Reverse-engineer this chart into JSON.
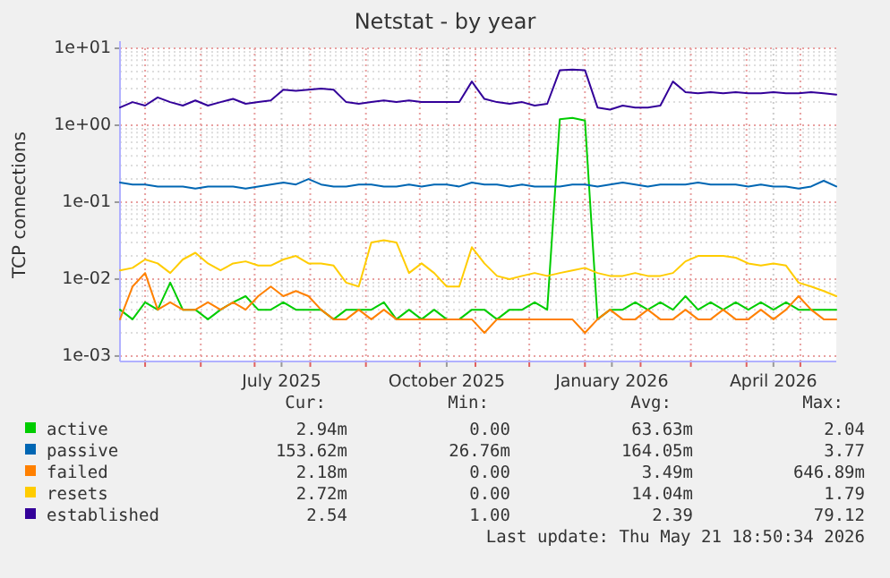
{
  "chart_data": {
    "type": "line",
    "title": "Netstat - by year",
    "ylabel": "TCP connections",
    "log": "y",
    "grid": true,
    "legend": "bottom",
    "line_style": "solid",
    "xlim": [
      "2025-04-17",
      "2026-05-21"
    ],
    "xticks": [
      {
        "value": "2025-05-01",
        "label": null
      },
      {
        "value": "2025-06-01",
        "label": null
      },
      {
        "value": "2025-07-01",
        "label": null
      },
      {
        "value": "2025-07-16",
        "label": "July 2025"
      },
      {
        "value": "2025-08-01",
        "label": null
      },
      {
        "value": "2025-09-01",
        "label": null
      },
      {
        "value": "2025-10-01",
        "label": null
      },
      {
        "value": "2025-10-16",
        "label": "October 2025"
      },
      {
        "value": "2025-11-01",
        "label": null
      },
      {
        "value": "2025-12-01",
        "label": null
      },
      {
        "value": "2026-01-01",
        "label": null
      },
      {
        "value": "2026-01-16",
        "label": "January 2026"
      },
      {
        "value": "2026-02-01",
        "label": null
      },
      {
        "value": "2026-03-01",
        "label": null
      },
      {
        "value": "2026-04-01",
        "label": null
      },
      {
        "value": "2026-04-16",
        "label": "April 2026"
      },
      {
        "value": "2026-05-01",
        "label": null
      }
    ],
    "ylim": [
      0.00085,
      10
    ],
    "yticks": [
      {
        "value": 0.001,
        "label": "1e-03"
      },
      {
        "value": 0.01,
        "label": "1e-02"
      },
      {
        "value": 0.1,
        "label": "1e-01"
      },
      {
        "value": 1,
        "label": "1e+00"
      },
      {
        "value": 10,
        "label": "1e+01"
      }
    ],
    "x": [
      "2025-04-17",
      "2025-04-24",
      "2025-05-01",
      "2025-05-08",
      "2025-05-15",
      "2025-05-22",
      "2025-05-29",
      "2025-06-05",
      "2025-06-12",
      "2025-06-19",
      "2025-06-26",
      "2025-07-03",
      "2025-07-10",
      "2025-07-17",
      "2025-07-24",
      "2025-07-31",
      "2025-08-07",
      "2025-08-14",
      "2025-08-21",
      "2025-08-28",
      "2025-09-04",
      "2025-09-11",
      "2025-09-18",
      "2025-09-25",
      "2025-10-02",
      "2025-10-09",
      "2025-10-16",
      "2025-10-23",
      "2025-10-30",
      "2025-11-06",
      "2025-11-13",
      "2025-11-20",
      "2025-11-27",
      "2025-12-04",
      "2025-12-11",
      "2025-12-18",
      "2025-12-25",
      "2026-01-01",
      "2026-01-08",
      "2026-01-15",
      "2026-01-22",
      "2026-01-29",
      "2026-02-05",
      "2026-02-12",
      "2026-02-19",
      "2026-02-26",
      "2026-03-05",
      "2026-03-12",
      "2026-03-19",
      "2026-03-26",
      "2026-04-02",
      "2026-04-09",
      "2026-04-16",
      "2026-04-23",
      "2026-04-30",
      "2026-05-07",
      "2026-05-14",
      "2026-05-21"
    ],
    "series": [
      {
        "name": "active",
        "color": "#00cc00",
        "values": [
          0.004,
          0.003,
          0.005,
          0.004,
          0.009,
          0.004,
          0.004,
          0.003,
          0.004,
          0.005,
          0.006,
          0.004,
          0.004,
          0.005,
          0.004,
          0.004,
          0.004,
          0.003,
          0.004,
          0.004,
          0.004,
          0.005,
          0.003,
          0.004,
          0.003,
          0.004,
          0.003,
          0.003,
          0.004,
          0.004,
          0.003,
          0.004,
          0.004,
          0.005,
          0.004,
          1.2,
          1.25,
          1.15,
          0.003,
          0.004,
          0.004,
          0.005,
          0.004,
          0.005,
          0.004,
          0.006,
          0.004,
          0.005,
          0.004,
          0.005,
          0.004,
          0.005,
          0.004,
          0.005,
          0.004,
          0.004,
          0.004,
          0.004
        ]
      },
      {
        "name": "passive",
        "color": "#0066b3",
        "values": [
          0.18,
          0.17,
          0.17,
          0.16,
          0.16,
          0.16,
          0.15,
          0.16,
          0.16,
          0.16,
          0.15,
          0.16,
          0.17,
          0.18,
          0.17,
          0.2,
          0.17,
          0.16,
          0.16,
          0.17,
          0.17,
          0.16,
          0.16,
          0.17,
          0.16,
          0.17,
          0.17,
          0.16,
          0.18,
          0.17,
          0.17,
          0.16,
          0.17,
          0.16,
          0.16,
          0.16,
          0.17,
          0.17,
          0.16,
          0.17,
          0.18,
          0.17,
          0.16,
          0.17,
          0.17,
          0.17,
          0.18,
          0.17,
          0.17,
          0.17,
          0.16,
          0.17,
          0.16,
          0.16,
          0.15,
          0.16,
          0.19,
          0.16
        ]
      },
      {
        "name": "failed",
        "color": "#ff8000",
        "values": [
          0.003,
          0.008,
          0.012,
          0.004,
          0.005,
          0.004,
          0.004,
          0.005,
          0.004,
          0.005,
          0.004,
          0.006,
          0.008,
          0.006,
          0.007,
          0.006,
          0.004,
          0.003,
          0.003,
          0.004,
          0.003,
          0.004,
          0.003,
          0.003,
          0.003,
          0.003,
          0.003,
          0.003,
          0.003,
          0.002,
          0.003,
          0.003,
          0.003,
          0.003,
          0.003,
          0.003,
          0.003,
          0.002,
          0.003,
          0.004,
          0.003,
          0.003,
          0.004,
          0.003,
          0.003,
          0.004,
          0.003,
          0.003,
          0.004,
          0.003,
          0.003,
          0.004,
          0.003,
          0.004,
          0.006,
          0.004,
          0.003,
          0.003
        ]
      },
      {
        "name": "resets",
        "color": "#ffcc00",
        "values": [
          0.013,
          0.014,
          0.018,
          0.016,
          0.012,
          0.018,
          0.022,
          0.016,
          0.013,
          0.016,
          0.017,
          0.015,
          0.015,
          0.018,
          0.02,
          0.016,
          0.016,
          0.015,
          0.009,
          0.008,
          0.03,
          0.032,
          0.03,
          0.012,
          0.016,
          0.012,
          0.008,
          0.008,
          0.026,
          0.016,
          0.011,
          0.01,
          0.011,
          0.012,
          0.011,
          0.012,
          0.013,
          0.014,
          0.012,
          0.011,
          0.011,
          0.012,
          0.011,
          0.011,
          0.012,
          0.017,
          0.02,
          0.02,
          0.02,
          0.019,
          0.016,
          0.015,
          0.016,
          0.015,
          0.009,
          0.008,
          0.007,
          0.006
        ]
      },
      {
        "name": "established",
        "color": "#330099",
        "values": [
          1.7,
          2.0,
          1.8,
          2.3,
          2.0,
          1.8,
          2.1,
          1.8,
          2.0,
          2.2,
          1.9,
          2.0,
          2.1,
          2.9,
          2.8,
          2.9,
          3.0,
          2.9,
          2.0,
          1.9,
          2.0,
          2.1,
          2.0,
          2.1,
          2.0,
          2.0,
          2.0,
          2.0,
          3.7,
          2.2,
          2.0,
          1.9,
          2.0,
          1.8,
          1.9,
          5.2,
          5.3,
          5.2,
          1.7,
          1.6,
          1.8,
          1.7,
          1.7,
          1.8,
          3.7,
          2.7,
          2.6,
          2.7,
          2.6,
          2.7,
          2.6,
          2.6,
          2.7,
          2.6,
          2.6,
          2.7,
          2.6,
          2.5
        ]
      }
    ],
    "annotations": [
      "Cur:",
      "Min:",
      "Avg:",
      "Max:",
      "2.94m",
      "0.00",
      "63.63m",
      "2.04",
      "153.62m",
      "26.76m",
      "164.05m",
      "3.77",
      "2.18m",
      "0.00",
      "3.49m",
      "646.89m",
      "2.72m",
      "0.00",
      "14.04m",
      "1.79",
      "2.54",
      "1.00",
      "2.39",
      "79.12",
      "Last update: Thu May 21 18:50:34 2026"
    ]
  }
}
